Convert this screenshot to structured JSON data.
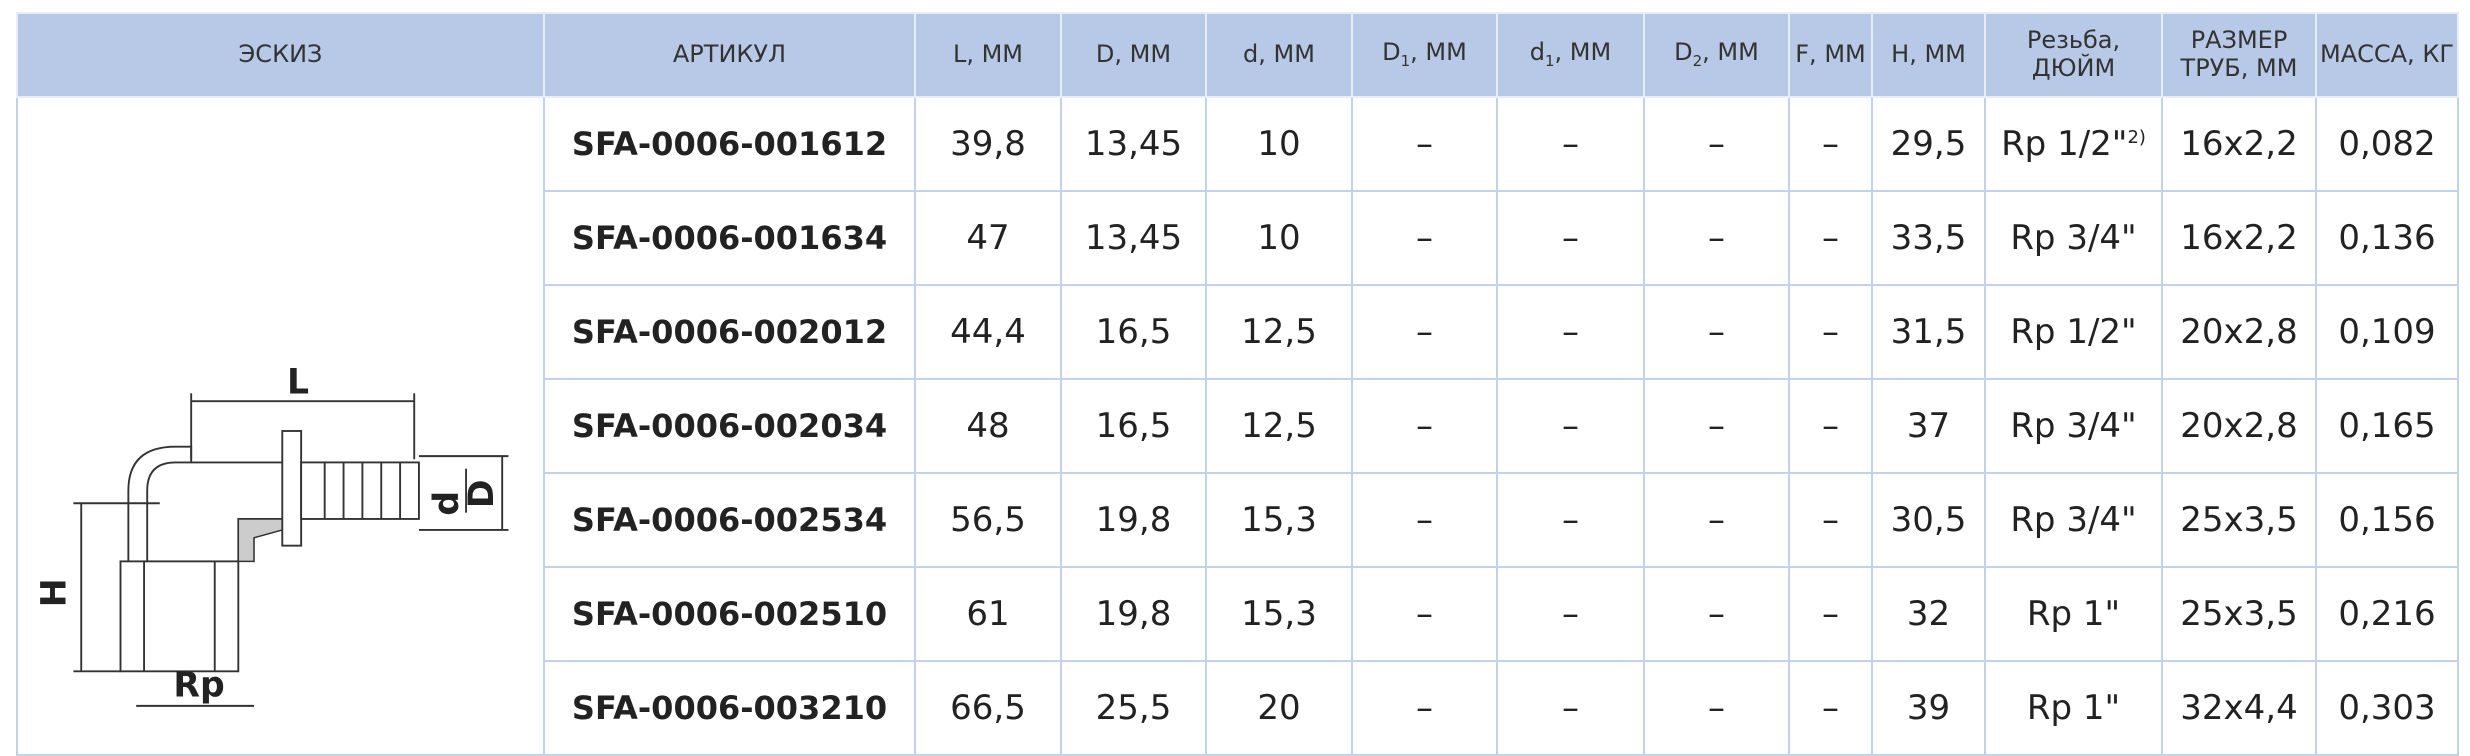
{
  "header": [
    "ЭСКИЗ",
    "АРТИКУЛ",
    "L, ММ",
    "D, ММ",
    "d, ММ",
    {
      "text": "D",
      "sub": "1",
      "suffix": ", ММ"
    },
    {
      "text": "d",
      "sub": "1",
      "suffix": ", ММ"
    },
    {
      "text": "D",
      "sub": "2",
      "suffix": ", ММ"
    },
    "F, ММ",
    "H, ММ",
    {
      "lines": [
        "Резьба,",
        "ДЮЙМ"
      ]
    },
    {
      "lines": [
        "РАЗМЕР",
        "ТРУБ, ММ"
      ]
    },
    "МАССА, КГ"
  ],
  "sketch": {
    "labels": [
      "L",
      "d",
      "D",
      "H",
      "Rp"
    ]
  },
  "rows": [
    [
      "SFA-0006-001612",
      "39,8",
      "13,45",
      "10",
      "–",
      "–",
      "–",
      "–",
      "29,5",
      {
        "text": "Rp 1/2\"",
        "sup": "2)"
      },
      "16x2,2",
      "0,082"
    ],
    [
      "SFA-0006-001634",
      "47",
      "13,45",
      "10",
      "–",
      "–",
      "–",
      "–",
      "33,5",
      "Rp 3/4\"",
      "16x2,2",
      "0,136"
    ],
    [
      "SFA-0006-002012",
      "44,4",
      "16,5",
      "12,5",
      "–",
      "–",
      "–",
      "–",
      "31,5",
      "Rp 1/2\"",
      "20x2,8",
      "0,109"
    ],
    [
      "SFA-0006-002034",
      "48",
      "16,5",
      "12,5",
      "–",
      "–",
      "–",
      "–",
      "37",
      "Rp 3/4\"",
      "20x2,8",
      "0,165"
    ],
    [
      "SFA-0006-002534",
      "56,5",
      "19,8",
      "15,3",
      "–",
      "–",
      "–",
      "–",
      "30,5",
      "Rp 3/4\"",
      "25x3,5",
      "0,156"
    ],
    [
      "SFA-0006-002510",
      "61",
      "19,8",
      "15,3",
      "–",
      "–",
      "–",
      "–",
      "32",
      "Rp 1\"",
      "25x3,5",
      "0,216"
    ],
    [
      "SFA-0006-003210",
      "66,5",
      "25,5",
      "20",
      "–",
      "–",
      "–",
      "–",
      "39",
      "Rp 1\"",
      "32x4,4",
      "0,303"
    ]
  ]
}
